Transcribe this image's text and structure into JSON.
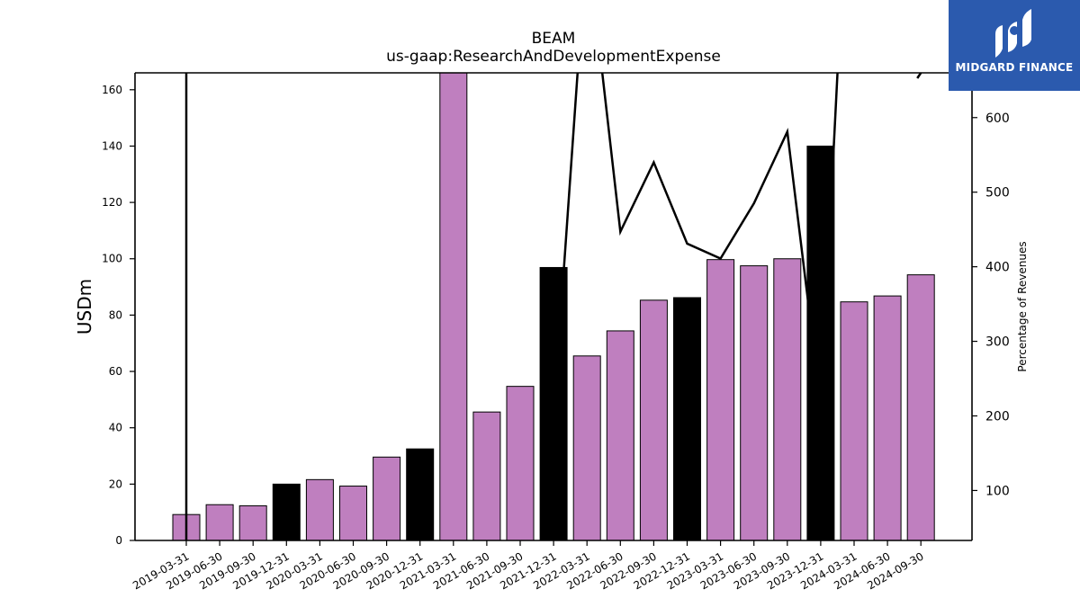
{
  "chart_data": {
    "type": "bar",
    "title": "BEAM",
    "subtitle": "us-gaap:ResearchAndDevelopmentExpense",
    "ylabel": "USDm",
    "y2label": "Percentage of Revenues",
    "ylim": [
      0,
      166
    ],
    "y2lim": [
      33,
      660
    ],
    "yticks": [
      0,
      20,
      40,
      60,
      80,
      100,
      120,
      140,
      160
    ],
    "y2ticks": [
      100,
      200,
      300,
      400,
      500,
      600
    ],
    "categories": [
      "2019-03-31",
      "2019-06-30",
      "2019-09-30",
      "2019-12-31",
      "2020-03-31",
      "2020-06-30",
      "2020-09-30",
      "2020-12-31",
      "2021-03-31",
      "2021-06-30",
      "2021-09-30",
      "2021-12-31",
      "2022-03-31",
      "2022-06-30",
      "2022-09-30",
      "2022-12-31",
      "2023-03-31",
      "2023-06-30",
      "2023-09-30",
      "2023-12-31",
      "2024-03-31",
      "2024-06-30",
      "2024-09-30"
    ],
    "series": [
      {
        "type": "bar",
        "values": [
          9.2,
          12.7,
          12.3,
          20.0,
          21.6,
          19.3,
          29.6,
          32.5,
          167.0,
          45.6,
          54.7,
          96.9,
          65.5,
          74.4,
          85.3,
          86.2,
          99.7,
          97.5,
          100.0,
          140.0,
          84.7,
          86.8,
          94.3
        ],
        "colors": [
          "#bf7fbf",
          "#bf7fbf",
          "#bf7fbf",
          "#000000",
          "#bf7fbf",
          "#bf7fbf",
          "#bf7fbf",
          "#000000",
          "#bf7fbf",
          "#bf7fbf",
          "#bf7fbf",
          "#000000",
          "#bf7fbf",
          "#bf7fbf",
          "#bf7fbf",
          "#000000",
          "#bf7fbf",
          "#bf7fbf",
          "#bf7fbf",
          "#000000",
          "#bf7fbf",
          "#bf7fbf",
          "#bf7fbf"
        ]
      },
      {
        "type": "line",
        "axis": "right",
        "color": "#000000",
        "values": [
          null,
          null,
          null,
          null,
          null,
          null,
          null,
          null,
          null,
          null,
          null,
          200,
          840,
          447,
          540,
          431,
          411,
          485,
          581,
          215,
          1100,
          null,
          660
        ]
      }
    ],
    "line_extends_off_top_at": "2019-03-31",
    "grid": false,
    "legend": "none"
  },
  "logo": {
    "text": "MIDGARD FINANCE",
    "color": "#2b5aae"
  }
}
